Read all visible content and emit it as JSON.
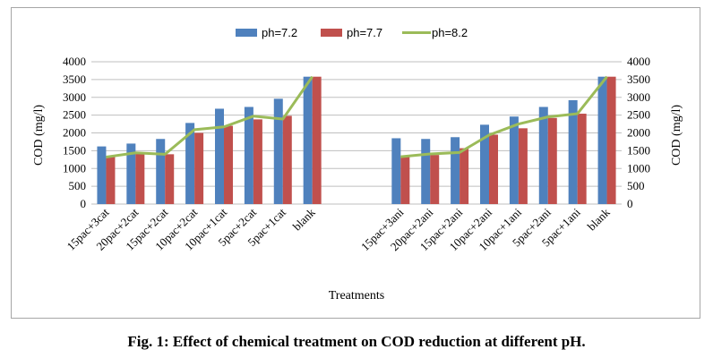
{
  "caption": "Fig. 1: Effect of chemical treatment on COD reduction at different pH.",
  "chart_data": {
    "type": "bar",
    "title": "",
    "xlabel": "Treatments",
    "ylabel": "COD (mg/l)",
    "y2label": "COD (mg/l)",
    "ylim": [
      0,
      4000
    ],
    "yticks": [
      0,
      500,
      1000,
      1500,
      2000,
      2500,
      3000,
      3500,
      4000
    ],
    "grid": true,
    "legend_position": "top",
    "categories": [
      "15pac+3cat",
      "20pac+2cat",
      "15pac+2cat",
      "10pac+2cat",
      "10pac+1cat",
      "5pac+2cat",
      "5pac+1cat",
      "blank",
      "",
      "",
      "15pac+3ani",
      "20pac+2ani",
      "15pac+2ani",
      "10pac+2ani",
      "10pac+1ani",
      "5pac+2ani",
      "5pac+1ani",
      "blank"
    ],
    "series": [
      {
        "name": "ph=7.2",
        "type": "bar",
        "color": "#4f81bd",
        "values": [
          1620,
          1700,
          1830,
          2280,
          2680,
          2730,
          2960,
          3580,
          null,
          null,
          1850,
          1830,
          1880,
          2230,
          2460,
          2730,
          2920,
          3580
        ]
      },
      {
        "name": "ph=7.7",
        "type": "bar",
        "color": "#c0504d",
        "values": [
          1340,
          1410,
          1400,
          2000,
          2200,
          2380,
          2480,
          3580,
          null,
          null,
          1330,
          1380,
          1570,
          1950,
          2130,
          2420,
          2540,
          3580
        ]
      },
      {
        "name": "ph=8.2",
        "type": "line",
        "color": "#9bbb59",
        "values": [
          1320,
          1440,
          1400,
          2090,
          2170,
          2470,
          2390,
          3580,
          null,
          null,
          1330,
          1410,
          1450,
          1940,
          2250,
          2450,
          2540,
          3580
        ]
      }
    ]
  }
}
